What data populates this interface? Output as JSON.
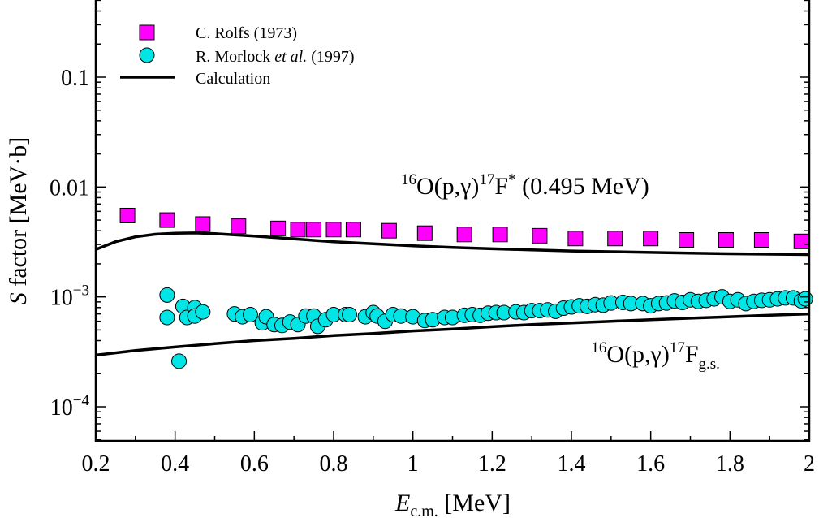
{
  "chart_data": {
    "type": "scatter",
    "xlabel": {
      "main": "E",
      "sub": "c.m.",
      "unit": "[MeV]"
    },
    "ylabel": {
      "main": "S",
      "rest": "factor [MeV·b]"
    },
    "xlim": [
      0.2,
      2.0
    ],
    "ylim": [
      5e-05,
      0.5
    ],
    "yscale": "log",
    "grid": false,
    "legend_position": "top-left",
    "x_ticks": [
      {
        "value": 0.2,
        "label": "0.2"
      },
      {
        "value": 0.4,
        "label": "0.4"
      },
      {
        "value": 0.6,
        "label": "0.6"
      },
      {
        "value": 0.8,
        "label": "0.8"
      },
      {
        "value": 1.0,
        "label": "1"
      },
      {
        "value": 1.2,
        "label": "1.2"
      },
      {
        "value": 1.4,
        "label": "1.4"
      },
      {
        "value": 1.6,
        "label": "1.6"
      },
      {
        "value": 1.8,
        "label": "1.8"
      },
      {
        "value": 2.0,
        "label": "2"
      }
    ],
    "y_ticks": [
      {
        "value": 0.1,
        "label": "0.1"
      },
      {
        "value": 0.01,
        "label": "0.01"
      },
      {
        "value": 0.001,
        "base": "10",
        "exp": "−3"
      },
      {
        "value": 0.0001,
        "base": "10",
        "exp": "−4"
      }
    ],
    "series": [
      {
        "name": "C. Rolfs (1973)",
        "marker": "square",
        "color": "#ff00ff",
        "points": [
          [
            0.28,
            0.0055
          ],
          [
            0.38,
            0.005
          ],
          [
            0.47,
            0.0046
          ],
          [
            0.56,
            0.0044
          ],
          [
            0.66,
            0.0042
          ],
          [
            0.71,
            0.0041
          ],
          [
            0.75,
            0.0041
          ],
          [
            0.8,
            0.0041
          ],
          [
            0.85,
            0.0041
          ],
          [
            0.94,
            0.004
          ],
          [
            1.03,
            0.0038
          ],
          [
            1.13,
            0.0037
          ],
          [
            1.22,
            0.0037
          ],
          [
            1.32,
            0.0036
          ],
          [
            1.41,
            0.0034
          ],
          [
            1.51,
            0.0034
          ],
          [
            1.6,
            0.0034
          ],
          [
            1.69,
            0.0033
          ],
          [
            1.79,
            0.0033
          ],
          [
            1.88,
            0.0033
          ],
          [
            1.98,
            0.0032
          ]
        ]
      },
      {
        "name_parts": [
          "R. Morlock ",
          "et al.",
          " (1997)"
        ],
        "marker": "circle",
        "color": "#00e5e5",
        "points": [
          [
            0.38,
            0.00104
          ],
          [
            0.38,
            0.00065
          ],
          [
            0.41,
            0.00026
          ],
          [
            0.42,
            0.00082
          ],
          [
            0.43,
            0.00065
          ],
          [
            0.45,
            0.0008
          ],
          [
            0.45,
            0.00067
          ],
          [
            0.47,
            0.00073
          ],
          [
            0.55,
            0.0007
          ],
          [
            0.57,
            0.00066
          ],
          [
            0.59,
            0.00069
          ],
          [
            0.62,
            0.00058
          ],
          [
            0.63,
            0.00066
          ],
          [
            0.65,
            0.00056
          ],
          [
            0.67,
            0.00055
          ],
          [
            0.69,
            0.00059
          ],
          [
            0.71,
            0.00056
          ],
          [
            0.73,
            0.00067
          ],
          [
            0.75,
            0.00067
          ],
          [
            0.76,
            0.00054
          ],
          [
            0.78,
            0.00062
          ],
          [
            0.8,
            0.00069
          ],
          [
            0.83,
            0.00069
          ],
          [
            0.84,
            0.00069
          ],
          [
            0.88,
            0.00066
          ],
          [
            0.9,
            0.00072
          ],
          [
            0.91,
            0.00067
          ],
          [
            0.93,
            0.0006
          ],
          [
            0.95,
            0.00069
          ],
          [
            0.97,
            0.00067
          ],
          [
            1.0,
            0.00066
          ],
          [
            1.03,
            0.00061
          ],
          [
            1.05,
            0.00062
          ],
          [
            1.08,
            0.00065
          ],
          [
            1.1,
            0.00065
          ],
          [
            1.13,
            0.00068
          ],
          [
            1.15,
            0.00069
          ],
          [
            1.17,
            0.00068
          ],
          [
            1.19,
            0.00071
          ],
          [
            1.21,
            0.00072
          ],
          [
            1.23,
            0.00072
          ],
          [
            1.26,
            0.00073
          ],
          [
            1.28,
            0.00072
          ],
          [
            1.3,
            0.00075
          ],
          [
            1.32,
            0.00075
          ],
          [
            1.34,
            0.00076
          ],
          [
            1.36,
            0.00074
          ],
          [
            1.38,
            0.00079
          ],
          [
            1.4,
            0.00081
          ],
          [
            1.42,
            0.00083
          ],
          [
            1.44,
            0.00082
          ],
          [
            1.46,
            0.00085
          ],
          [
            1.48,
            0.00084
          ],
          [
            1.5,
            0.00088
          ],
          [
            1.53,
            0.00089
          ],
          [
            1.55,
            0.00087
          ],
          [
            1.58,
            0.00087
          ],
          [
            1.6,
            0.00083
          ],
          [
            1.62,
            0.00087
          ],
          [
            1.64,
            0.00088
          ],
          [
            1.66,
            0.00092
          ],
          [
            1.68,
            0.00089
          ],
          [
            1.7,
            0.00094
          ],
          [
            1.72,
            0.00091
          ],
          [
            1.74,
            0.00093
          ],
          [
            1.76,
            0.00096
          ],
          [
            1.78,
            0.001
          ],
          [
            1.8,
            0.00091
          ],
          [
            1.82,
            0.00094
          ],
          [
            1.84,
            0.00087
          ],
          [
            1.86,
            0.00091
          ],
          [
            1.88,
            0.00093
          ],
          [
            1.9,
            0.00094
          ],
          [
            1.92,
            0.00096
          ],
          [
            1.94,
            0.00098
          ],
          [
            1.96,
            0.00098
          ],
          [
            1.98,
            0.00092
          ],
          [
            1.99,
            0.00096
          ]
        ]
      },
      {
        "name": "Calculation",
        "marker": "line",
        "color": "#000000",
        "curves": [
          [
            [
              0.2,
              0.0027
            ],
            [
              0.25,
              0.00318
            ],
            [
              0.3,
              0.00352
            ],
            [
              0.35,
              0.00372
            ],
            [
              0.4,
              0.0038
            ],
            [
              0.45,
              0.00382
            ],
            [
              0.5,
              0.00377
            ],
            [
              0.6,
              0.00358
            ],
            [
              0.7,
              0.00337
            ],
            [
              0.8,
              0.00318
            ],
            [
              0.9,
              0.00304
            ],
            [
              1.0,
              0.00292
            ],
            [
              1.1,
              0.00282
            ],
            [
              1.2,
              0.00274
            ],
            [
              1.3,
              0.00268
            ],
            [
              1.4,
              0.00262
            ],
            [
              1.5,
              0.00258
            ],
            [
              1.6,
              0.00254
            ],
            [
              1.7,
              0.0025
            ],
            [
              1.8,
              0.00247
            ],
            [
              1.9,
              0.00245
            ],
            [
              2.0,
              0.00243
            ]
          ],
          [
            [
              0.2,
              0.000295
            ],
            [
              0.3,
              0.000325
            ],
            [
              0.4,
              0.00035
            ],
            [
              0.5,
              0.000375
            ],
            [
              0.6,
              0.0004
            ],
            [
              0.7,
              0.00042
            ],
            [
              0.8,
              0.000445
            ],
            [
              0.9,
              0.000465
            ],
            [
              1.0,
              0.00049
            ],
            [
              1.1,
              0.00051
            ],
            [
              1.2,
              0.000535
            ],
            [
              1.3,
              0.00056
            ],
            [
              1.4,
              0.00058
            ],
            [
              1.5,
              0.0006
            ],
            [
              1.6,
              0.00062
            ],
            [
              1.7,
              0.00064
            ],
            [
              1.8,
              0.00066
            ],
            [
              1.9,
              0.00068
            ],
            [
              2.0,
              0.0007
            ]
          ]
        ]
      }
    ],
    "annotations": [
      {
        "id": "excited",
        "x": 0.97,
        "y": 0.0086,
        "parts": [
          {
            "text": "16",
            "sup": true
          },
          {
            "text": "O(p,γ)"
          },
          {
            "text": "17",
            "sup": true
          },
          {
            "text": "F"
          },
          {
            "text": "*",
            "sup": true
          },
          {
            "text": " (0.495 MeV)"
          }
        ]
      },
      {
        "id": "ground",
        "x": 1.45,
        "y": 0.000255,
        "parts": [
          {
            "text": "16",
            "sup": true
          },
          {
            "text": "O(p,γ)"
          },
          {
            "text": "17",
            "sup": true
          },
          {
            "text": "F"
          },
          {
            "text": "g.s.",
            "sub": true
          }
        ]
      }
    ]
  }
}
